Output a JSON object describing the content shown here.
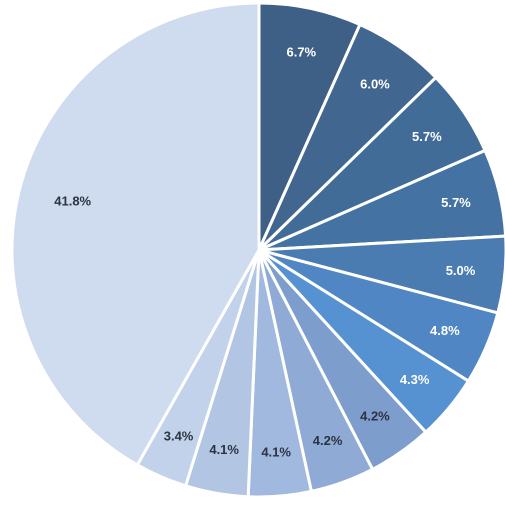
{
  "chart_data": {
    "type": "pie",
    "start_angle_deg": 0,
    "direction": "clockwise",
    "slices": [
      {
        "label": "6.7%",
        "value": 6.7,
        "color": "#3e5f86",
        "label_color": "#ffffff"
      },
      {
        "label": "6.0%",
        "value": 6.0,
        "color": "#41668f",
        "label_color": "#ffffff"
      },
      {
        "label": "5.7%",
        "value": 5.7,
        "color": "#426c98",
        "label_color": "#ffffff"
      },
      {
        "label": "5.7%",
        "value": 5.7,
        "color": "#4473a3",
        "label_color": "#ffffff"
      },
      {
        "label": "5.0%",
        "value": 5.0,
        "color": "#4a7cb2",
        "label_color": "#ffffff"
      },
      {
        "label": "4.8%",
        "value": 4.8,
        "color": "#4f86c3",
        "label_color": "#ffffff"
      },
      {
        "label": "4.3%",
        "value": 4.3,
        "color": "#5691d1",
        "label_color": "#ffffff"
      },
      {
        "label": "4.2%",
        "value": 4.2,
        "color": "#7d9dcc",
        "label_color": "#2b3440"
      },
      {
        "label": "4.2%",
        "value": 4.2,
        "color": "#8eaad5",
        "label_color": "#2b3440"
      },
      {
        "label": "4.1%",
        "value": 4.1,
        "color": "#a1b9de",
        "label_color": "#2b3440"
      },
      {
        "label": "4.1%",
        "value": 4.1,
        "color": "#b2c6e4",
        "label_color": "#2b3440"
      },
      {
        "label": "3.4%",
        "value": 3.4,
        "color": "#c2d2ea",
        "label_color": "#2b3440"
      },
      {
        "label": "41.8%",
        "value": 41.8,
        "color": "#cfdbee",
        "label_color": "#2b3440"
      }
    ]
  }
}
